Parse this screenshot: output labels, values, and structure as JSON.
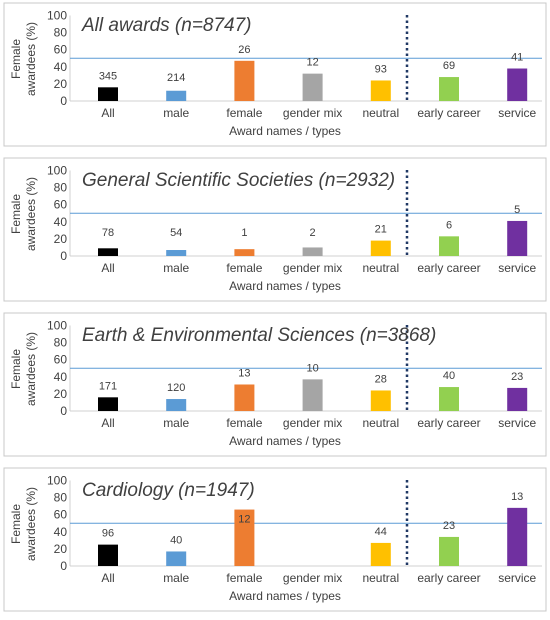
{
  "colors": {
    "All": "#000000",
    "male": "#5b9bd5",
    "female": "#ed7d31",
    "gender mix": "#a5a5a5",
    "neutral": "#ffc000",
    "early career": "#92d050",
    "service": "#7030a0"
  },
  "chart_data": [
    {
      "type": "bar",
      "title": "All awards (n=8747)",
      "xlabel": "Award names / types",
      "ylabel": "Female awardees (%)",
      "ylim": [
        0,
        100
      ],
      "yticks": [
        0,
        20,
        40,
        60,
        80,
        100
      ],
      "reference_line": 50,
      "categories": [
        "All",
        "male",
        "female",
        "gender mix",
        "neutral",
        "early career",
        "service"
      ],
      "values": [
        16,
        12,
        47,
        32,
        24,
        28,
        38
      ],
      "data_labels": [
        "345",
        "214",
        "26",
        "12",
        "93",
        "69",
        "41"
      ]
    },
    {
      "type": "bar",
      "title": "General Scientific Societies (n=2932)",
      "xlabel": "Award names / types",
      "ylabel": "Female awardees (%)",
      "ylim": [
        0,
        100
      ],
      "yticks": [
        0,
        20,
        40,
        60,
        80,
        100
      ],
      "reference_line": 50,
      "categories": [
        "All",
        "male",
        "female",
        "gender mix",
        "neutral",
        "early career",
        "service"
      ],
      "values": [
        9,
        7,
        8,
        10,
        18,
        23,
        41
      ],
      "data_labels": [
        "78",
        "54",
        "1",
        "2",
        "21",
        "6",
        "5"
      ]
    },
    {
      "type": "bar",
      "title": "Earth & Environmental Sciences (n=3868)",
      "xlabel": "Award names / types",
      "ylabel": "Female awardees (%)",
      "ylim": [
        0,
        100
      ],
      "yticks": [
        0,
        20,
        40,
        60,
        80,
        100
      ],
      "reference_line": 50,
      "categories": [
        "All",
        "male",
        "female",
        "gender mix",
        "neutral",
        "early career",
        "service"
      ],
      "values": [
        16,
        14,
        31,
        37,
        24,
        28,
        27
      ],
      "data_labels": [
        "171",
        "120",
        "13",
        "10",
        "28",
        "40",
        "23"
      ]
    },
    {
      "type": "bar",
      "title": "Cardiology (n=1947)",
      "xlabel": "Award names / types",
      "ylabel": "Female awardees (%)",
      "ylim": [
        0,
        100
      ],
      "yticks": [
        0,
        20,
        40,
        60,
        80,
        100
      ],
      "reference_line": 50,
      "categories": [
        "All",
        "male",
        "female",
        "gender mix",
        "neutral",
        "early career",
        "service"
      ],
      "values": [
        25,
        17,
        66,
        null,
        27,
        34,
        68
      ],
      "data_labels": [
        "96",
        "40",
        "12",
        "",
        "44",
        "23",
        "13"
      ]
    }
  ]
}
